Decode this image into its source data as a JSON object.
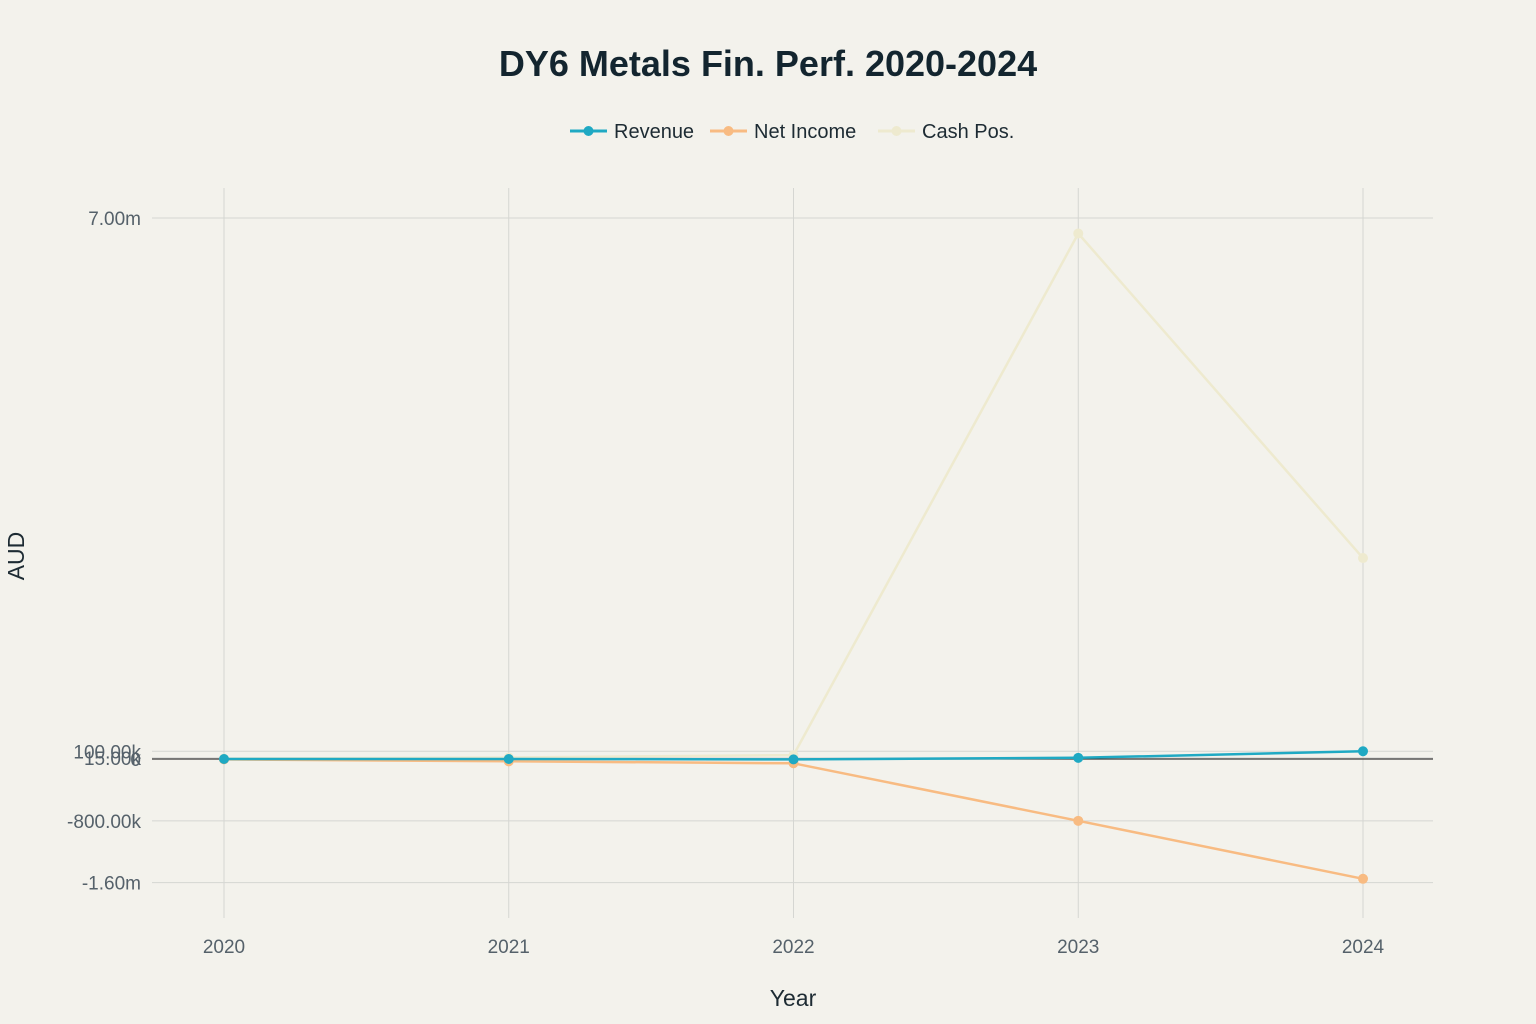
{
  "chart_data": {
    "type": "line",
    "title": "DY6 Metals Fin. Perf. 2020-2024",
    "xlabel": "Year",
    "ylabel": "AUD",
    "categories": [
      "2020",
      "2021",
      "2022",
      "2023",
      "2024"
    ],
    "series": [
      {
        "name": "Revenue",
        "color": "#1fa9c3",
        "values": [
          0,
          0,
          -5000,
          15000,
          100000
        ]
      },
      {
        "name": "Net Income",
        "color": "#f8bb82",
        "values": [
          -5000,
          -30000,
          -55000,
          -800000,
          -1550000
        ]
      },
      {
        "name": "Cash Pos.",
        "color": "#eeeacf",
        "values": [
          5000,
          20000,
          50000,
          6800000,
          2600000
        ]
      }
    ],
    "yticks": [
      {
        "value": 7000000,
        "label": "7.00m"
      },
      {
        "value": 100000,
        "label": "100.00k"
      },
      {
        "value": 15000,
        "label": "15.00k"
      },
      {
        "value": 0,
        "label": "0"
      },
      {
        "value": -800000,
        "label": "-800.00k"
      },
      {
        "value": -1600000,
        "label": "-1.60m"
      }
    ],
    "ylim": [
      -1950000,
      7350000
    ],
    "legend_position": "top-center",
    "grid": true
  }
}
